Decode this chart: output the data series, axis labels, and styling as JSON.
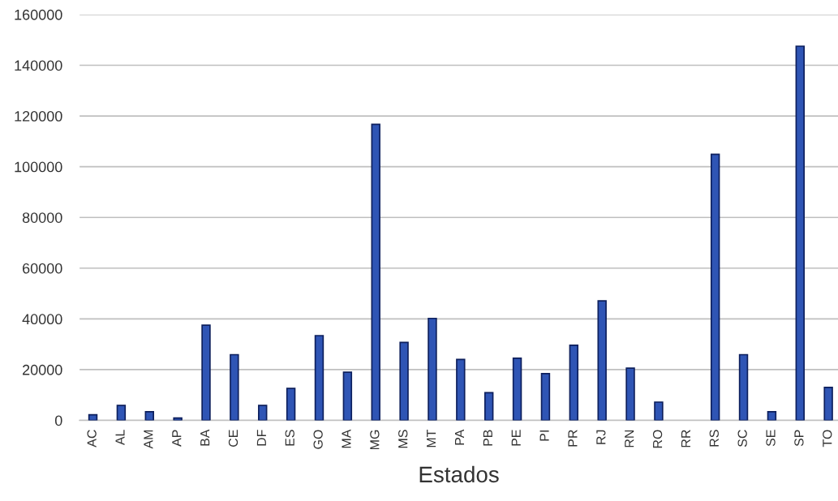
{
  "chart_data": {
    "type": "bar",
    "xlabel": "Estados",
    "categories": [
      "AC",
      "AL",
      "AM",
      "AP",
      "BA",
      "CE",
      "DF",
      "ES",
      "GO",
      "MA",
      "MG",
      "MS",
      "MT",
      "PA",
      "PB",
      "PE",
      "PI",
      "PR",
      "RJ",
      "RN",
      "RO",
      "RR",
      "RS",
      "SC",
      "SE",
      "SP",
      "TO"
    ],
    "values": [
      2200,
      5900,
      3400,
      900,
      37500,
      25900,
      5900,
      12600,
      33400,
      19000,
      116700,
      30700,
      40200,
      24000,
      10900,
      24500,
      18400,
      29600,
      47100,
      20600,
      7200,
      null,
      104900,
      25900,
      3400,
      147500,
      13000
    ],
    "color": "#2f55b5",
    "ylim": [
      0,
      160000
    ],
    "yticks": [
      0,
      20000,
      40000,
      60000,
      80000,
      100000,
      120000,
      140000,
      160000
    ],
    "grid": "y"
  }
}
